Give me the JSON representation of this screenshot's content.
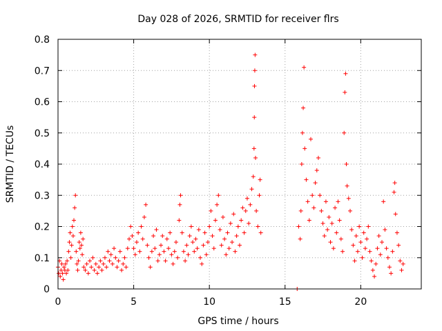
{
  "chart_data": {
    "type": "scatter",
    "title": "Day 028 of 2026, SRMTID for receiver flrs",
    "xlabel": "GPS time / hours",
    "ylabel": "SRMTID / TECUs",
    "xlim": [
      0,
      24
    ],
    "ylim": [
      0,
      0.8
    ],
    "x_ticks": [
      0,
      5,
      10,
      15,
      20
    ],
    "x_tick_labels": [
      "0",
      "5",
      "10",
      "15",
      "20"
    ],
    "y_ticks": [
      0,
      0.1,
      0.2,
      0.3,
      0.4,
      0.5,
      0.6,
      0.7,
      0.8
    ],
    "y_tick_labels": [
      "0",
      "0.1",
      "0.2",
      "0.3",
      "0.4",
      "0.5",
      "0.6",
      "0.7",
      "0.8"
    ],
    "grid": true,
    "marker": "+",
    "color": "#ff0000",
    "series": [
      {
        "name": "SRMTID",
        "points": [
          [
            0.0,
            0.07
          ],
          [
            0.05,
            0.05
          ],
          [
            0.1,
            0.09
          ],
          [
            0.15,
            0.04
          ],
          [
            0.2,
            0.06
          ],
          [
            0.25,
            0.08
          ],
          [
            0.3,
            0.05
          ],
          [
            0.35,
            0.03
          ],
          [
            0.4,
            0.07
          ],
          [
            0.45,
            0.06
          ],
          [
            0.5,
            0.08
          ],
          [
            0.55,
            0.05
          ],
          [
            0.6,
            0.09
          ],
          [
            0.65,
            0.06
          ],
          [
            0.7,
            0.12
          ],
          [
            0.75,
            0.15
          ],
          [
            0.8,
            0.18
          ],
          [
            0.85,
            0.1
          ],
          [
            0.9,
            0.14
          ],
          [
            0.95,
            0.2
          ],
          [
            1.0,
            0.17
          ],
          [
            1.05,
            0.22
          ],
          [
            1.1,
            0.26
          ],
          [
            1.15,
            0.3
          ],
          [
            1.2,
            0.12
          ],
          [
            1.25,
            0.08
          ],
          [
            1.3,
            0.06
          ],
          [
            1.35,
            0.09
          ],
          [
            1.4,
            0.15
          ],
          [
            1.45,
            0.13
          ],
          [
            1.5,
            0.18
          ],
          [
            1.55,
            0.14
          ],
          [
            1.6,
            0.11
          ],
          [
            1.65,
            0.16
          ],
          [
            1.7,
            0.07
          ],
          [
            1.8,
            0.06
          ],
          [
            1.9,
            0.08
          ],
          [
            2.0,
            0.05
          ],
          [
            2.1,
            0.09
          ],
          [
            2.2,
            0.07
          ],
          [
            2.3,
            0.1
          ],
          [
            2.4,
            0.06
          ],
          [
            2.5,
            0.08
          ],
          [
            2.6,
            0.05
          ],
          [
            2.7,
            0.07
          ],
          [
            2.8,
            0.09
          ],
          [
            2.9,
            0.06
          ],
          [
            3.0,
            0.08
          ],
          [
            3.1,
            0.1
          ],
          [
            3.2,
            0.07
          ],
          [
            3.3,
            0.12
          ],
          [
            3.4,
            0.09
          ],
          [
            3.5,
            0.11
          ],
          [
            3.6,
            0.08
          ],
          [
            3.7,
            0.13
          ],
          [
            3.8,
            0.1
          ],
          [
            3.9,
            0.07
          ],
          [
            4.0,
            0.09
          ],
          [
            4.1,
            0.12
          ],
          [
            4.2,
            0.06
          ],
          [
            4.3,
            0.08
          ],
          [
            4.4,
            0.1
          ],
          [
            4.5,
            0.07
          ],
          [
            4.6,
            0.13
          ],
          [
            4.7,
            0.16
          ],
          [
            4.8,
            0.2
          ],
          [
            4.9,
            0.17
          ],
          [
            5.0,
            0.13
          ],
          [
            5.1,
            0.11
          ],
          [
            5.2,
            0.15
          ],
          [
            5.3,
            0.18
          ],
          [
            5.4,
            0.12
          ],
          [
            5.5,
            0.2
          ],
          [
            5.6,
            0.16
          ],
          [
            5.7,
            0.23
          ],
          [
            5.8,
            0.27
          ],
          [
            5.9,
            0.14
          ],
          [
            6.0,
            0.1
          ],
          [
            6.1,
            0.07
          ],
          [
            6.2,
            0.12
          ],
          [
            6.3,
            0.17
          ],
          [
            6.4,
            0.13
          ],
          [
            6.5,
            0.19
          ],
          [
            6.6,
            0.09
          ],
          [
            6.7,
            0.11
          ],
          [
            6.8,
            0.14
          ],
          [
            6.9,
            0.17
          ],
          [
            7.0,
            0.12
          ],
          [
            7.1,
            0.09
          ],
          [
            7.2,
            0.16
          ],
          [
            7.3,
            0.13
          ],
          [
            7.4,
            0.18
          ],
          [
            7.5,
            0.11
          ],
          [
            7.6,
            0.08
          ],
          [
            7.7,
            0.12
          ],
          [
            7.8,
            0.15
          ],
          [
            7.9,
            0.1
          ],
          [
            8.0,
            0.22
          ],
          [
            8.05,
            0.27
          ],
          [
            8.1,
            0.3
          ],
          [
            8.2,
            0.18
          ],
          [
            8.3,
            0.12
          ],
          [
            8.4,
            0.09
          ],
          [
            8.5,
            0.14
          ],
          [
            8.6,
            0.11
          ],
          [
            8.7,
            0.17
          ],
          [
            8.8,
            0.2
          ],
          [
            8.9,
            0.15
          ],
          [
            9.0,
            0.12
          ],
          [
            9.1,
            0.16
          ],
          [
            9.2,
            0.13
          ],
          [
            9.3,
            0.19
          ],
          [
            9.4,
            0.1
          ],
          [
            9.5,
            0.08
          ],
          [
            9.6,
            0.14
          ],
          [
            9.7,
            0.18
          ],
          [
            9.8,
            0.11
          ],
          [
            9.9,
            0.15
          ],
          [
            10.0,
            0.2
          ],
          [
            10.1,
            0.25
          ],
          [
            10.2,
            0.17
          ],
          [
            10.3,
            0.13
          ],
          [
            10.4,
            0.22
          ],
          [
            10.5,
            0.27
          ],
          [
            10.6,
            0.3
          ],
          [
            10.7,
            0.19
          ],
          [
            10.8,
            0.14
          ],
          [
            10.9,
            0.23
          ],
          [
            11.0,
            0.16
          ],
          [
            11.1,
            0.11
          ],
          [
            11.2,
            0.18
          ],
          [
            11.3,
            0.13
          ],
          [
            11.4,
            0.21
          ],
          [
            11.5,
            0.15
          ],
          [
            11.6,
            0.24
          ],
          [
            11.7,
            0.12
          ],
          [
            11.8,
            0.17
          ],
          [
            11.9,
            0.2
          ],
          [
            12.0,
            0.14
          ],
          [
            12.1,
            0.22
          ],
          [
            12.2,
            0.26
          ],
          [
            12.3,
            0.18
          ],
          [
            12.4,
            0.25
          ],
          [
            12.5,
            0.29
          ],
          [
            12.6,
            0.21
          ],
          [
            12.7,
            0.27
          ],
          [
            12.8,
            0.32
          ],
          [
            12.9,
            0.36
          ],
          [
            12.95,
            0.45
          ],
          [
            12.97,
            0.55
          ],
          [
            12.98,
            0.65
          ],
          [
            13.0,
            0.7
          ],
          [
            13.02,
            0.75
          ],
          [
            13.05,
            0.42
          ],
          [
            13.1,
            0.25
          ],
          [
            13.2,
            0.2
          ],
          [
            13.3,
            0.3
          ],
          [
            13.35,
            0.35
          ],
          [
            13.4,
            0.18
          ],
          [
            15.8,
            0.0
          ],
          [
            15.9,
            0.2
          ],
          [
            16.0,
            0.16
          ],
          [
            16.05,
            0.25
          ],
          [
            16.1,
            0.4
          ],
          [
            16.15,
            0.5
          ],
          [
            16.2,
            0.58
          ],
          [
            16.25,
            0.71
          ],
          [
            16.3,
            0.45
          ],
          [
            16.4,
            0.35
          ],
          [
            16.5,
            0.28
          ],
          [
            16.6,
            0.22
          ],
          [
            16.7,
            0.48
          ],
          [
            16.8,
            0.3
          ],
          [
            16.9,
            0.26
          ],
          [
            17.0,
            0.34
          ],
          [
            17.1,
            0.38
          ],
          [
            17.2,
            0.42
          ],
          [
            17.3,
            0.3
          ],
          [
            17.4,
            0.25
          ],
          [
            17.5,
            0.21
          ],
          [
            17.6,
            0.17
          ],
          [
            17.7,
            0.28
          ],
          [
            17.8,
            0.19
          ],
          [
            17.9,
            0.23
          ],
          [
            18.0,
            0.15
          ],
          [
            18.1,
            0.21
          ],
          [
            18.2,
            0.13
          ],
          [
            18.3,
            0.26
          ],
          [
            18.4,
            0.18
          ],
          [
            18.5,
            0.28
          ],
          [
            18.6,
            0.22
          ],
          [
            18.7,
            0.16
          ],
          [
            18.8,
            0.12
          ],
          [
            18.9,
            0.5
          ],
          [
            18.95,
            0.63
          ],
          [
            19.0,
            0.69
          ],
          [
            19.05,
            0.4
          ],
          [
            19.1,
            0.33
          ],
          [
            19.2,
            0.29
          ],
          [
            19.3,
            0.25
          ],
          [
            19.4,
            0.19
          ],
          [
            19.5,
            0.14
          ],
          [
            19.6,
            0.09
          ],
          [
            19.7,
            0.17
          ],
          [
            19.8,
            0.12
          ],
          [
            19.9,
            0.2
          ],
          [
            20.0,
            0.15
          ],
          [
            20.1,
            0.1
          ],
          [
            20.2,
            0.18
          ],
          [
            20.3,
            0.13
          ],
          [
            20.4,
            0.16
          ],
          [
            20.5,
            0.2
          ],
          [
            20.6,
            0.12
          ],
          [
            20.7,
            0.09
          ],
          [
            20.8,
            0.06
          ],
          [
            20.9,
            0.04
          ],
          [
            21.0,
            0.08
          ],
          [
            21.1,
            0.13
          ],
          [
            21.2,
            0.17
          ],
          [
            21.3,
            0.11
          ],
          [
            21.4,
            0.15
          ],
          [
            21.5,
            0.28
          ],
          [
            21.6,
            0.19
          ],
          [
            21.7,
            0.13
          ],
          [
            21.8,
            0.1
          ],
          [
            21.9,
            0.07
          ],
          [
            22.0,
            0.05
          ],
          [
            22.1,
            0.12
          ],
          [
            22.2,
            0.31
          ],
          [
            22.25,
            0.34
          ],
          [
            22.3,
            0.24
          ],
          [
            22.4,
            0.18
          ],
          [
            22.5,
            0.14
          ],
          [
            22.6,
            0.09
          ],
          [
            22.7,
            0.06
          ],
          [
            22.8,
            0.08
          ]
        ]
      }
    ]
  }
}
